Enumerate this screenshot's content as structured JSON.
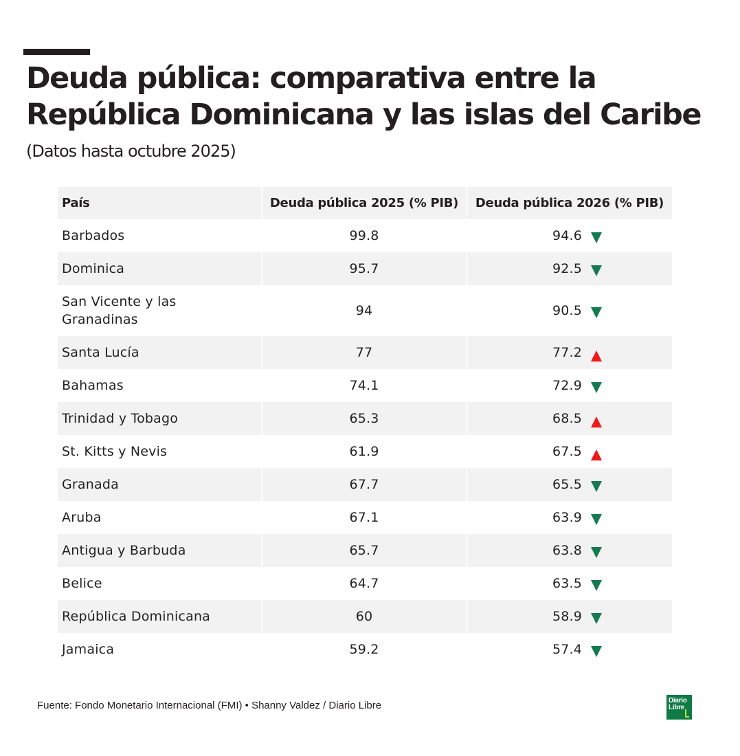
{
  "header": {
    "title": "Deuda pública: comparativa entre la República Dominicana y las islas del Caribe",
    "subtitle": "(Datos hasta octubre 2025)"
  },
  "colors": {
    "decrease": "#157a50",
    "increase": "#f01818",
    "header_bg": "#f2f2f2",
    "stripe_bg": "#f2f2f2",
    "brand": "#0f7a44"
  },
  "chart_data": {
    "type": "table",
    "title": "Deuda pública: comparativa entre la República Dominicana y las islas del Caribe",
    "subtitle": "(Datos hasta octubre 2025)",
    "columns": [
      "País",
      "Deuda pública 2025 (% PIB)",
      "Deuda pública 2026 (% PIB)"
    ],
    "rows": [
      {
        "country": "Barbados",
        "y2025": "99.8",
        "y2026": "94.6",
        "trend": "down"
      },
      {
        "country": "Dominica",
        "y2025": "95.7",
        "y2026": "92.5",
        "trend": "down"
      },
      {
        "country": "San Vicente y las Granadinas",
        "y2025": "94",
        "y2026": "90.5",
        "trend": "down"
      },
      {
        "country": "Santa Lucía",
        "y2025": "77",
        "y2026": "77.2",
        "trend": "up"
      },
      {
        "country": "Bahamas",
        "y2025": "74.1",
        "y2026": "72.9",
        "trend": "down"
      },
      {
        "country": "Trinidad y Tobago",
        "y2025": "65.3",
        "y2026": "68.5",
        "trend": "up"
      },
      {
        "country": "St. Kitts y Nevis",
        "y2025": "61.9",
        "y2026": "67.5",
        "trend": "up"
      },
      {
        "country": "Granada",
        "y2025": "67.7",
        "y2026": "65.5",
        "trend": "down"
      },
      {
        "country": "Aruba",
        "y2025": "67.1",
        "y2026": "63.9",
        "trend": "down"
      },
      {
        "country": "Antigua y Barbuda",
        "y2025": "65.7",
        "y2026": "63.8",
        "trend": "down"
      },
      {
        "country": "Belice",
        "y2025": "64.7",
        "y2026": "63.5",
        "trend": "down"
      },
      {
        "country": "República Dominicana",
        "y2025": "60",
        "y2026": "58.9",
        "trend": "down"
      },
      {
        "country": "Jamaica",
        "y2025": "59.2",
        "y2026": "57.4",
        "trend": "down"
      }
    ]
  },
  "footer": {
    "source": "Fuente: Fondo Monetario Internacional (FMI) • Shanny Valdez / Diario Libre",
    "logo_line1": "Diario",
    "logo_line2": "Libre"
  }
}
